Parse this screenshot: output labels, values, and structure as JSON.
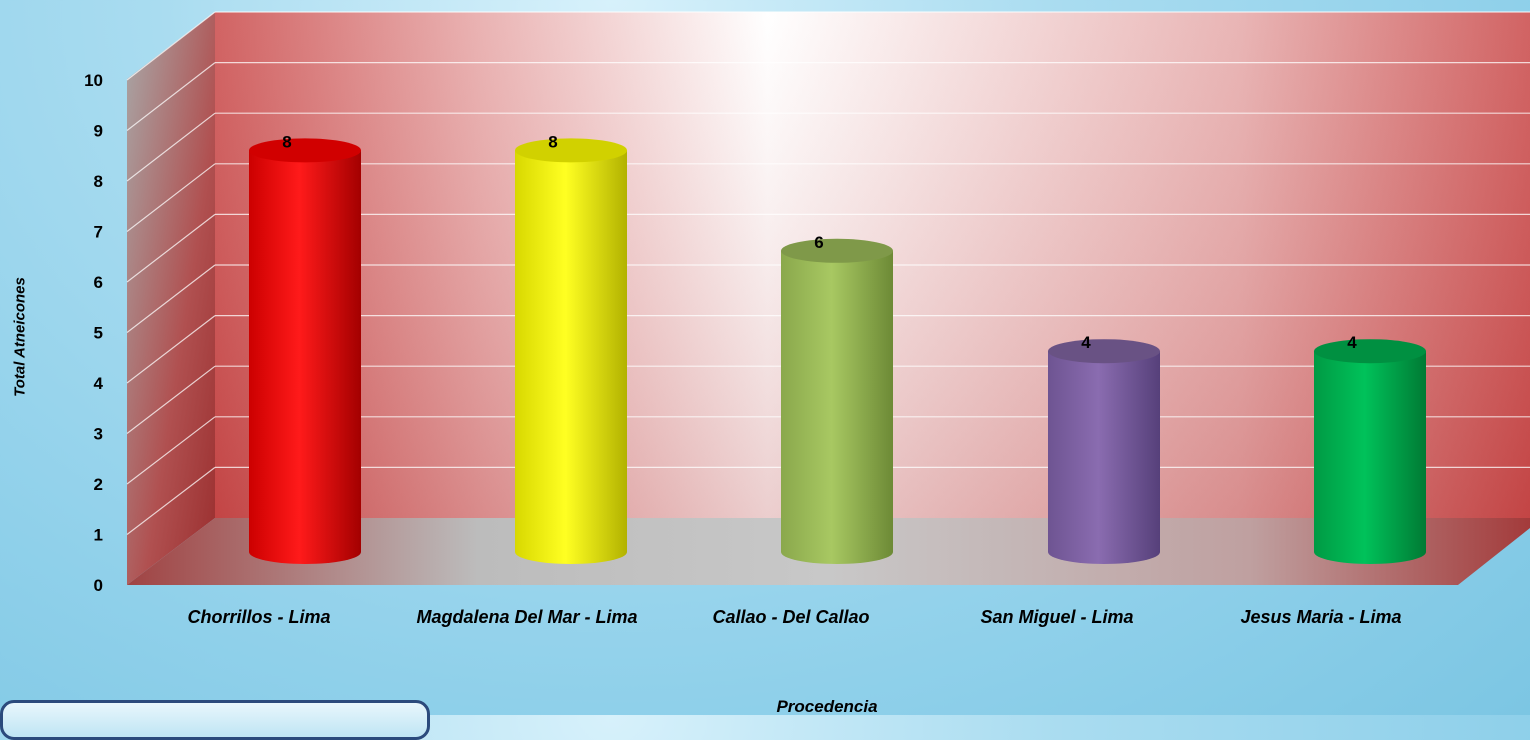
{
  "chart_data": {
    "type": "bar",
    "style": "3d-cylinder",
    "title": "",
    "xlabel": "Procedencia",
    "ylabel": "Total Atneicones",
    "ylim": [
      0,
      10
    ],
    "yticks": [
      "0",
      "1",
      "2",
      "3",
      "4",
      "5",
      "6",
      "7",
      "8",
      "9",
      "10"
    ],
    "grid": true,
    "categories": [
      "Chorrillos - Lima",
      "Magdalena Del Mar - Lima",
      "Callao - Del Callao",
      "San Miguel - Lima",
      "Jesus Maria - Lima"
    ],
    "values": [
      8,
      8,
      6,
      4,
      4
    ],
    "data_labels": [
      "8",
      "8",
      "6",
      "4",
      "4"
    ],
    "colors": [
      "#ff0000",
      "#ffff00",
      "#9bbb59",
      "#8064a2",
      "#00b050"
    ]
  },
  "colors": {
    "back_wall": "#c94a4a",
    "floor": "#b3b3b3"
  }
}
